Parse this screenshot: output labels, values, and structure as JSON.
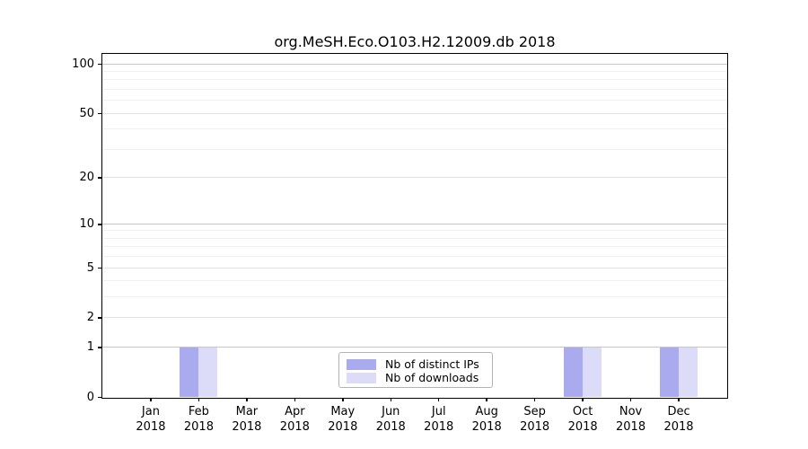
{
  "chart_data": {
    "type": "bar",
    "title": "org.MeSH.Eco.O103.H2.12009.db 2018",
    "year": "2018",
    "categories": [
      "Jan",
      "Feb",
      "Mar",
      "Apr",
      "May",
      "Jun",
      "Jul",
      "Aug",
      "Sep",
      "Oct",
      "Nov",
      "Dec"
    ],
    "series": [
      {
        "name": "Nb of distinct IPs",
        "color": "#aaaaee",
        "values": [
          0,
          1,
          0,
          0,
          0,
          0,
          0,
          0,
          0,
          1,
          0,
          1
        ]
      },
      {
        "name": "Nb of downloads",
        "color": "#dcdcf8",
        "values": [
          0,
          1,
          0,
          0,
          0,
          0,
          0,
          0,
          0,
          1,
          0,
          1
        ]
      }
    ],
    "yscale": "log1p",
    "ylim": [
      0,
      115
    ],
    "yticks": [
      0,
      1,
      2,
      5,
      10,
      20,
      50,
      100
    ],
    "yticks_minor": [
      3,
      4,
      6,
      7,
      8,
      9,
      30,
      40,
      60,
      70,
      80,
      90
    ],
    "grid": "horizontal",
    "legend_position": "inside-bottom-center",
    "colors": {
      "grid_major": "#c6c6c6",
      "grid_mid": "#e2e2e2",
      "grid_minor": "#f0f0f0",
      "spine": "#000000"
    }
  }
}
